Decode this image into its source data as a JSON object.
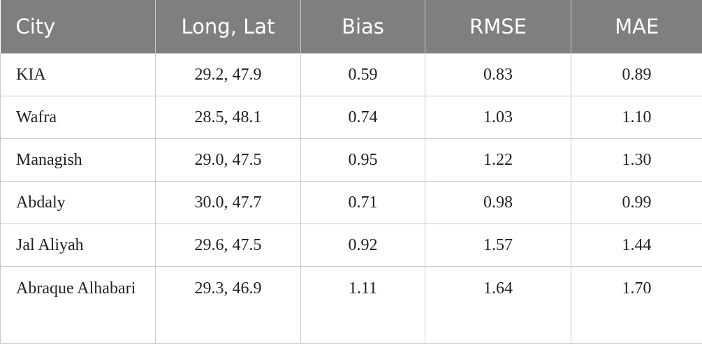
{
  "table": {
    "header": [
      "City",
      "Long, Lat",
      "Bias",
      "RMSE",
      "MAE"
    ],
    "rows": [
      [
        "KIA",
        "29.2, 47.9",
        "0.59",
        "0.83",
        "0.89"
      ],
      [
        "Wafra",
        "28.5, 48.1",
        "0.74",
        "1.03",
        "1.10"
      ],
      [
        "Managish",
        "29.0, 47.5",
        "0.95",
        "1.22",
        "1.30"
      ],
      [
        "Abdaly",
        "30.0, 47.7",
        "0.71",
        "0.98",
        "0.99"
      ],
      [
        "Jal Aliyah",
        "29.6, 47.5",
        "0.92",
        "1.57",
        "1.44"
      ],
      [
        "Abraque Alhabari",
        "29.3, 46.9",
        "1.11",
        "1.64",
        "1.70"
      ]
    ]
  }
}
